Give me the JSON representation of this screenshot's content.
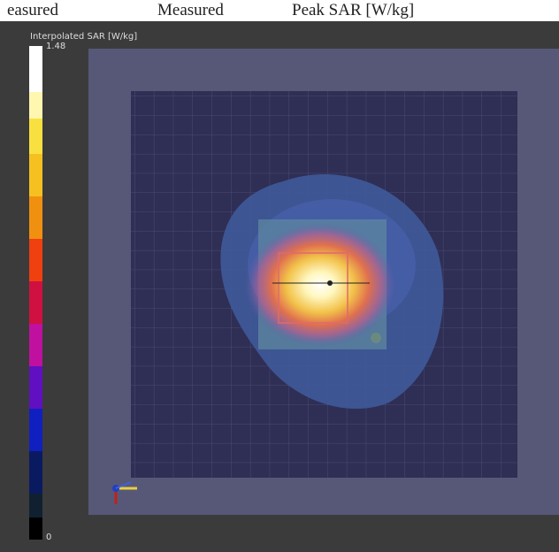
{
  "header": {
    "columns": [
      "easured",
      "Measured",
      "Peak SAR [W/kg]"
    ]
  },
  "colorbar": {
    "label": "Interpolated SAR [W/kg]",
    "max": "1.48",
    "min": "0"
  }
}
